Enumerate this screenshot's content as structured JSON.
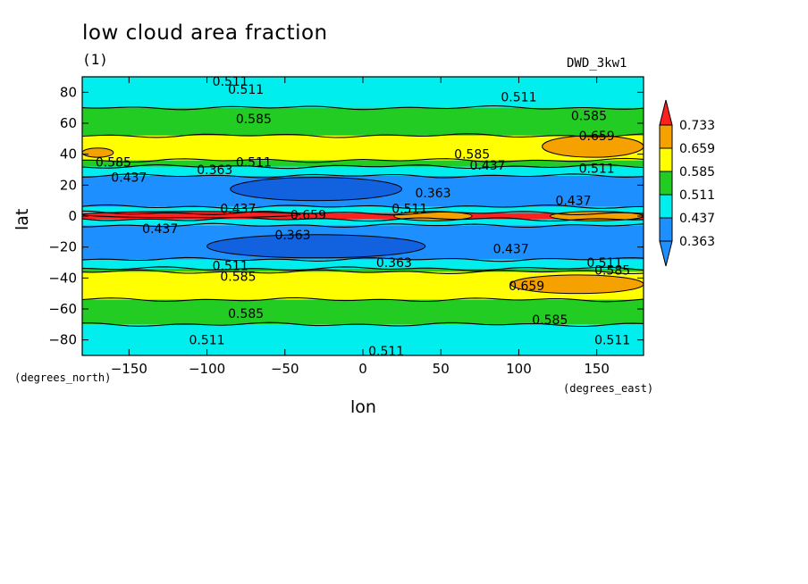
{
  "chart_data": {
    "type": "heatmap",
    "title": "low cloud area fraction",
    "units": "(1)",
    "model": "DWD_3kw1",
    "xlabel": "lon",
    "ylabel": "lat",
    "x_units": "(degrees_east)",
    "y_units": "(degrees_north)",
    "xlim": [
      -180,
      180
    ],
    "ylim": [
      -90,
      90
    ],
    "x_ticks": [
      -150,
      -100,
      -50,
      0,
      50,
      100,
      150
    ],
    "y_ticks": [
      -80,
      -60,
      -40,
      -20,
      0,
      20,
      40,
      60,
      80
    ],
    "levels": [
      0.363,
      0.437,
      0.511,
      0.585,
      0.659,
      0.733
    ],
    "colorbar": [
      {
        "label": "0.733",
        "color": "#ff2020"
      },
      {
        "label": "0.659",
        "color": "#f5a100"
      },
      {
        "label": "0.585",
        "color": "#ffff00"
      },
      {
        "label": "0.511",
        "color": "#22cc22"
      },
      {
        "label": "0.437",
        "color": "#00eeee"
      },
      {
        "label": "0.363",
        "color": "#1e8fff"
      }
    ],
    "bands": [
      {
        "lat": [
          70,
          90
        ],
        "color": "#00eeee"
      },
      {
        "lat": [
          52,
          70
        ],
        "color": "#22cc22"
      },
      {
        "lat": [
          36,
          52
        ],
        "color": "#ffff00"
      },
      {
        "lat": [
          32,
          36
        ],
        "color": "#22cc22"
      },
      {
        "lat": [
          26,
          32
        ],
        "color": "#00eeee"
      },
      {
        "lat": [
          6,
          26
        ],
        "color": "#1e8fff"
      },
      {
        "lat": [
          2,
          6
        ],
        "color": "#00eeee"
      },
      {
        "lat": [
          -2,
          2
        ],
        "color": "#ff2020"
      },
      {
        "lat": [
          -6,
          -2
        ],
        "color": "#00eeee"
      },
      {
        "lat": [
          -28,
          -6
        ],
        "color": "#1e8fff"
      },
      {
        "lat": [
          -34,
          -28
        ],
        "color": "#00eeee"
      },
      {
        "lat": [
          -36,
          -34
        ],
        "color": "#22cc22"
      },
      {
        "lat": [
          -54,
          -36
        ],
        "color": "#ffff00"
      },
      {
        "lat": [
          -70,
          -54
        ],
        "color": "#22cc22"
      },
      {
        "lat": [
          -90,
          -70
        ],
        "color": "#00eeee"
      }
    ],
    "patches": [
      {
        "lon": [
          -85,
          25
        ],
        "lat": [
          10,
          25
        ],
        "color": "#1262e0"
      },
      {
        "lon": [
          -100,
          40
        ],
        "lat": [
          -27,
          -12
        ],
        "color": "#1262e0"
      },
      {
        "lon": [
          115,
          180
        ],
        "lat": [
          38,
          52
        ],
        "color": "#f5a100"
      },
      {
        "lon": [
          -180,
          -160
        ],
        "lat": [
          38,
          44
        ],
        "color": "#f5a100"
      },
      {
        "lon": [
          95,
          180
        ],
        "lat": [
          -50,
          -38
        ],
        "color": "#f5a100"
      },
      {
        "lon": [
          20,
          70
        ],
        "lat": [
          -3,
          3
        ],
        "color": "#f5a100"
      },
      {
        "lon": [
          120,
          180
        ],
        "lat": [
          -3,
          3
        ],
        "color": "#f5a100"
      },
      {
        "lon": [
          -180,
          -40
        ],
        "lat": [
          -1,
          3
        ],
        "color": "#ff2020"
      }
    ],
    "contour_labels": [
      {
        "text": "0.511",
        "lon": -85,
        "lat": 87
      },
      {
        "text": "0.511",
        "lon": -75,
        "lat": 82
      },
      {
        "text": "0.511",
        "lon": 100,
        "lat": 77
      },
      {
        "text": "0.585",
        "lon": -70,
        "lat": 63
      },
      {
        "text": "0.585",
        "lon": 145,
        "lat": 65
      },
      {
        "text": "0.659",
        "lon": 150,
        "lat": 52
      },
      {
        "text": "0.585",
        "lon": 70,
        "lat": 40
      },
      {
        "text": "0.585",
        "lon": -160,
        "lat": 35
      },
      {
        "text": "0.437",
        "lon": -150,
        "lat": 25
      },
      {
        "text": "0.363",
        "lon": -95,
        "lat": 30
      },
      {
        "text": "0.511",
        "lon": -70,
        "lat": 35
      },
      {
        "text": "0.437",
        "lon": 80,
        "lat": 33
      },
      {
        "text": "0.511",
        "lon": 150,
        "lat": 31
      },
      {
        "text": "0.363",
        "lon": 45,
        "lat": 15
      },
      {
        "text": "0.437",
        "lon": 135,
        "lat": 10
      },
      {
        "text": "0.437",
        "lon": -80,
        "lat": 5
      },
      {
        "text": "0.511",
        "lon": 30,
        "lat": 5
      },
      {
        "text": "0.659",
        "lon": -35,
        "lat": 1
      },
      {
        "text": "0.437",
        "lon": -130,
        "lat": -8
      },
      {
        "text": "0.363",
        "lon": -45,
        "lat": -12
      },
      {
        "text": "0.437",
        "lon": 95,
        "lat": -21
      },
      {
        "text": "0.363",
        "lon": 20,
        "lat": -30
      },
      {
        "text": "0.511",
        "lon": 155,
        "lat": -30
      },
      {
        "text": "0.585",
        "lon": 160,
        "lat": -35
      },
      {
        "text": "0.511",
        "lon": -85,
        "lat": -32
      },
      {
        "text": "0.585",
        "lon": -80,
        "lat": -39
      },
      {
        "text": "0.659",
        "lon": 105,
        "lat": -45
      },
      {
        "text": "0.585",
        "lon": -75,
        "lat": -63
      },
      {
        "text": "0.585",
        "lon": 120,
        "lat": -67
      },
      {
        "text": "0.511",
        "lon": -100,
        "lat": -80
      },
      {
        "text": "0.511",
        "lon": 15,
        "lat": -87
      },
      {
        "text": "0.511",
        "lon": 160,
        "lat": -80
      }
    ]
  }
}
